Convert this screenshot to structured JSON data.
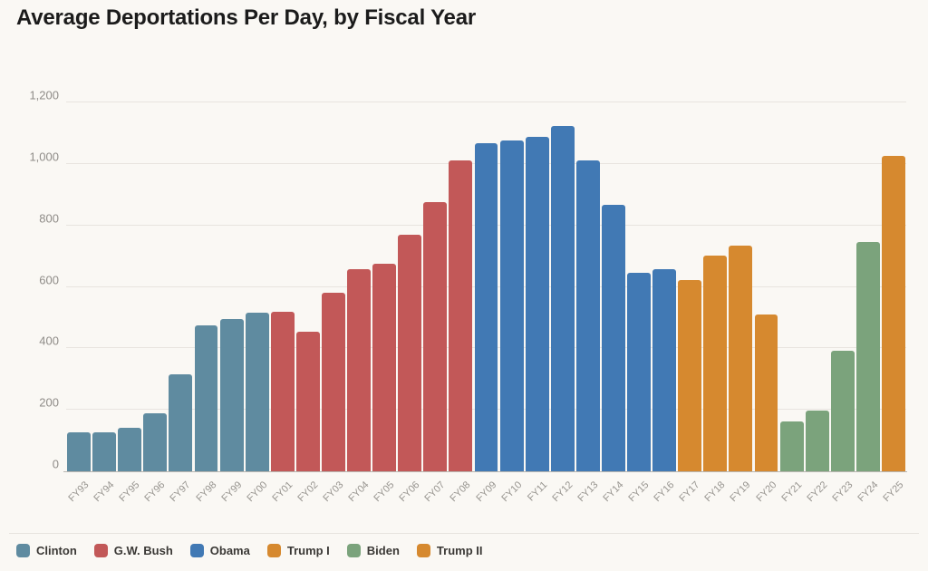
{
  "title": "Average Deportations Per Day, by Fiscal Year",
  "colors": {
    "background": "#faf8f4",
    "grid": "#e8e4df",
    "axis_line": "#b9b6b1",
    "tick_text": "#8f8c88",
    "title_text": "#1b1b1b",
    "legend_text": "#3a3835",
    "clinton": "#5f8ba0",
    "gw_bush": "#c25858",
    "obama": "#4179b4",
    "trump_i": "#d6892f",
    "biden": "#7ba37c",
    "trump_ii": "#d6892f"
  },
  "chart_data": {
    "type": "bar",
    "title": "Average Deportations Per Day, by Fiscal Year",
    "xlabel": "",
    "ylabel": "",
    "ylim": [
      0,
      1200
    ],
    "ytick_values": [
      0,
      200,
      400,
      600,
      800,
      1000,
      1200
    ],
    "ytick_labels": [
      "0",
      "200",
      "400",
      "600",
      "800",
      "1,000",
      "1,200"
    ],
    "grid": true,
    "legend_position": "bottom",
    "categories": [
      "FY93",
      "FY94",
      "FY95",
      "FY96",
      "FY97",
      "FY98",
      "FY99",
      "FY00",
      "FY01",
      "FY02",
      "FY03",
      "FY04",
      "FY05",
      "FY06",
      "FY07",
      "FY08",
      "FY09",
      "FY10",
      "FY11",
      "FY12",
      "FY13",
      "FY14",
      "FY15",
      "FY16",
      "FY17",
      "FY18",
      "FY19",
      "FY20",
      "FY21",
      "FY22",
      "FY23",
      "FY24",
      "FY25"
    ],
    "values": [
      127,
      127,
      141,
      190,
      315,
      475,
      494,
      517,
      520,
      453,
      580,
      659,
      676,
      771,
      875,
      1012,
      1068,
      1077,
      1089,
      1124,
      1012,
      867,
      645,
      659,
      621,
      702,
      733,
      510,
      162,
      198,
      392,
      746,
      1026
    ],
    "bar_groups": [
      "Clinton",
      "Clinton",
      "Clinton",
      "Clinton",
      "Clinton",
      "Clinton",
      "Clinton",
      "Clinton",
      "G.W. Bush",
      "G.W. Bush",
      "G.W. Bush",
      "G.W. Bush",
      "G.W. Bush",
      "G.W. Bush",
      "G.W. Bush",
      "G.W. Bush",
      "Obama",
      "Obama",
      "Obama",
      "Obama",
      "Obama",
      "Obama",
      "Obama",
      "Obama",
      "Trump I",
      "Trump I",
      "Trump I",
      "Trump I",
      "Biden",
      "Biden",
      "Biden",
      "Biden",
      "Trump II"
    ],
    "group_colors": {
      "Clinton": "#5f8ba0",
      "G.W. Bush": "#c25858",
      "Obama": "#4179b4",
      "Trump I": "#d6892f",
      "Biden": "#7ba37c",
      "Trump II": "#d6892f"
    },
    "legend": [
      {
        "label": "Clinton",
        "color": "#5f8ba0"
      },
      {
        "label": "G.W. Bush",
        "color": "#c25858"
      },
      {
        "label": "Obama",
        "color": "#4179b4"
      },
      {
        "label": "Trump I",
        "color": "#d6892f"
      },
      {
        "label": "Biden",
        "color": "#7ba37c"
      },
      {
        "label": "Trump II",
        "color": "#d6892f"
      }
    ]
  }
}
